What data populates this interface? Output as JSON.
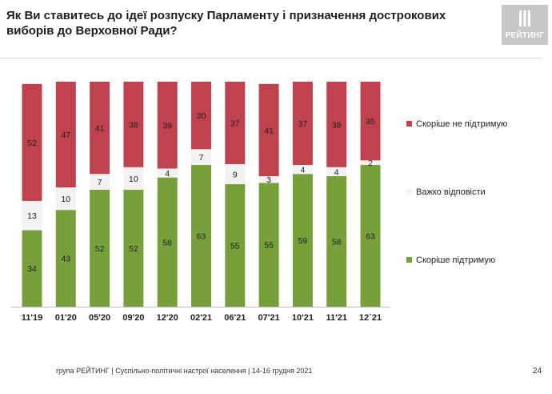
{
  "title": "Як Ви ставитесь до ідеї розпуску Парламенту і призначення дострокових виборів до Верховної Ради?",
  "logo": {
    "text": "РЕЙТИНГ",
    "icon": "rating-logo-icon"
  },
  "footer": "група РЕЙТИНГ | Суспільно-політичні настрої населення | 14-16 грудня 2021",
  "page_number": "24",
  "chart_data": {
    "type": "bar",
    "stacked": true,
    "categories": [
      "11'19",
      "01'20",
      "05'20",
      "09'20",
      "12'20",
      "02'21",
      "06'21",
      "07'21",
      "10'21",
      "11'21",
      "12`21"
    ],
    "series": [
      {
        "name": "Скоріше  підтримую",
        "color": "#77a03a",
        "values": [
          34,
          43,
          52,
          52,
          58,
          63,
          55,
          55,
          59,
          58,
          63
        ]
      },
      {
        "name": "Важко відповісти",
        "color": "#f2f2f2",
        "values": [
          13,
          10,
          7,
          10,
          4,
          7,
          9,
          3,
          4,
          4,
          2
        ]
      },
      {
        "name": "Скоріше не підтримую",
        "color": "#c0424e",
        "values": [
          52,
          47,
          41,
          38,
          39,
          30,
          37,
          41,
          37,
          38,
          35
        ]
      }
    ],
    "legend_position": "right",
    "ylim": [
      0,
      100
    ],
    "grid": false
  }
}
